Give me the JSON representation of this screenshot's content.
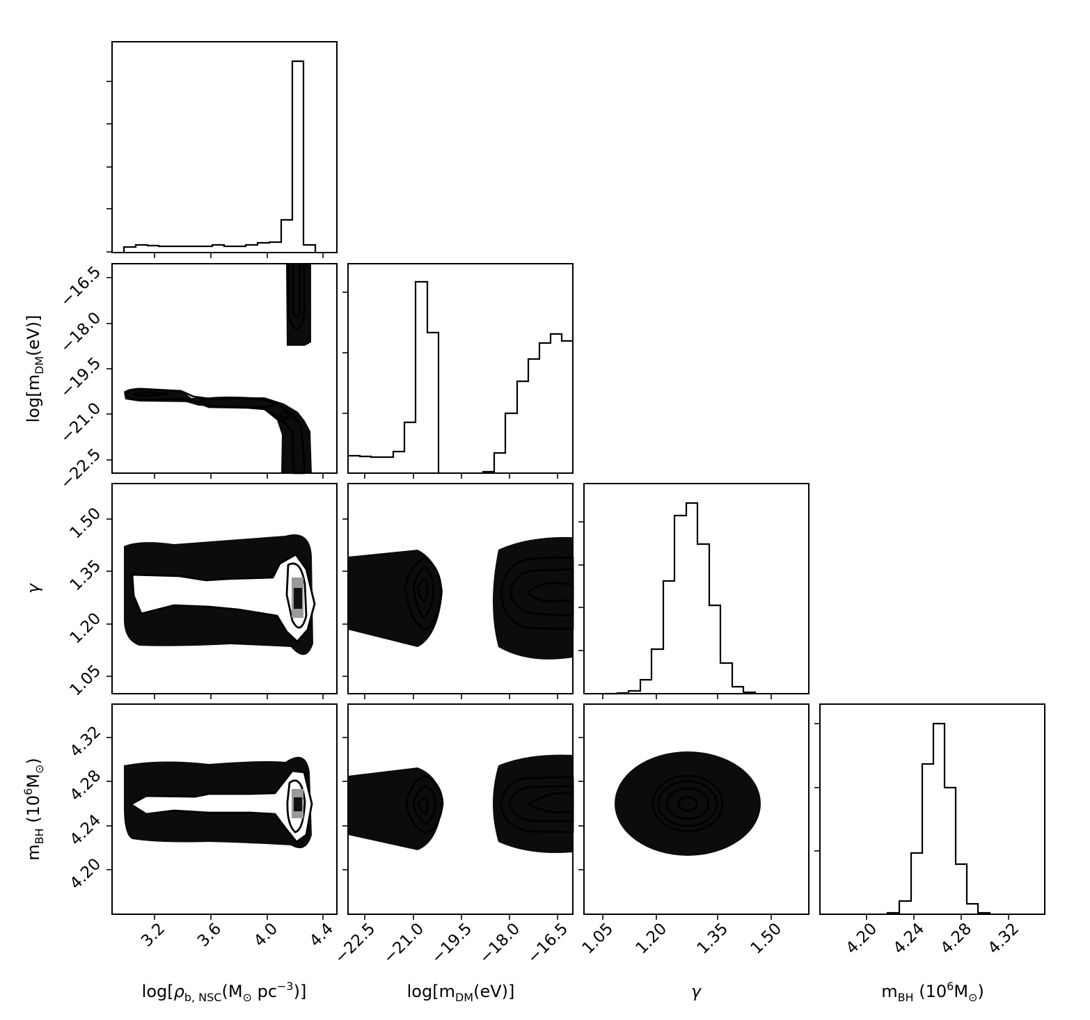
{
  "chart_data": [
    {
      "type": "histogram",
      "panel": "rho-hist",
      "variable": "log[ρ_b,NSC(M_⊙ pc^-3)]",
      "bin_edges": [
        3.0,
        3.1,
        3.2,
        3.3,
        3.4,
        3.5,
        3.6,
        3.7,
        3.8,
        3.9,
        4.0,
        4.1,
        4.2,
        4.3,
        4.4,
        4.5
      ],
      "counts": [
        0.025,
        0.038,
        0.032,
        0.03,
        0.03,
        0.03,
        0.035,
        0.03,
        0.035,
        0.045,
        0.05,
        0.17,
        1.0,
        0.04,
        0.0
      ],
      "xlim": [
        2.85,
        4.5
      ],
      "x_ticks": [
        "3.2",
        "3.6",
        "4.0",
        "4.4"
      ]
    },
    {
      "type": "histogram",
      "panel": "mdm-hist",
      "variable": "log[m_DM(eV)]",
      "bin_edges": [
        -23.0,
        -22.6,
        -22.2,
        -21.8,
        -21.4,
        -21.0,
        -20.6,
        -20.2,
        -19.8,
        -19.4,
        -19.0,
        -18.6,
        -18.2,
        -17.8,
        -17.4,
        -17.0,
        -16.6,
        -16.2
      ],
      "counts": [
        0.09,
        0.085,
        0.08,
        0.1,
        0.24,
        0.88,
        0.68,
        0.0,
        0.0,
        0.0,
        0.08,
        0.29,
        0.46,
        0.55,
        0.61,
        0.65,
        0.62
      ],
      "xlim": [
        -23.0,
        -16.0
      ],
      "x_ticks": [
        "−22.5",
        "−21.0",
        "−19.5",
        "−18.0",
        "−16.5"
      ]
    },
    {
      "type": "histogram",
      "panel": "gamma-hist",
      "variable": "γ",
      "bin_edges": [
        1.02,
        1.06,
        1.1,
        1.14,
        1.18,
        1.22,
        1.26,
        1.3,
        1.34,
        1.38,
        1.42,
        1.46,
        1.5
      ],
      "counts": [
        0.0,
        0.004,
        0.02,
        0.06,
        0.2,
        0.55,
        0.92,
        0.98,
        0.75,
        0.45,
        0.15,
        0.04
      ],
      "xlim": [
        0.99,
        1.62
      ],
      "x_ticks": [
        "1.05",
        "1.20",
        "1.35",
        "1.50"
      ]
    },
    {
      "type": "histogram",
      "panel": "mbh-hist",
      "variable": "m_BH (10^6 M_⊙)",
      "bin_edges": [
        4.21,
        4.22,
        4.23,
        4.24,
        4.25,
        4.26,
        4.27,
        4.28,
        4.29,
        4.3,
        4.31
      ],
      "counts": [
        0.005,
        0.07,
        0.32,
        0.71,
        0.9,
        0.62,
        0.24,
        0.05,
        0.005,
        0.0
      ],
      "xlim": [
        4.16,
        4.35
      ],
      "x_ticks": [
        "4.20",
        "4.24",
        "4.28",
        "4.32"
      ]
    },
    {
      "type": "scatter",
      "panel": "rho-vs-mdm",
      "x": "log[ρ_b,NSC(M_⊙ pc^-3)]",
      "y": "log[m_DM(eV)]",
      "xlim": [
        2.85,
        4.5
      ],
      "ylim": [
        -23.0,
        -16.0
      ],
      "y_ticks": [
        "−16.5",
        "−18.0",
        "−19.5",
        "−21.0",
        "−22.5"
      ]
    },
    {
      "type": "scatter",
      "panel": "rho-vs-gamma",
      "x": "log[ρ_b,NSC(M_⊙ pc^-3)]",
      "y": "γ",
      "xlim": [
        2.85,
        4.5
      ],
      "ylim": [
        0.99,
        1.62
      ],
      "y_ticks": [
        "1.50",
        "1.35",
        "1.20",
        "1.05"
      ]
    },
    {
      "type": "scatter",
      "panel": "mdm-vs-gamma",
      "x": "log[m_DM(eV)]",
      "y": "γ",
      "xlim": [
        -23.0,
        -16.0
      ],
      "ylim": [
        0.99,
        1.62
      ]
    },
    {
      "type": "scatter",
      "panel": "rho-vs-mbh",
      "x": "log[ρ_b,NSC(M_⊙ pc^-3)]",
      "y": "m_BH (10^6 M_⊙)",
      "xlim": [
        2.85,
        4.5
      ],
      "ylim": [
        4.16,
        4.35
      ],
      "y_ticks": [
        "4.32",
        "4.28",
        "4.24",
        "4.20"
      ]
    },
    {
      "type": "scatter",
      "panel": "mdm-vs-mbh",
      "x": "log[m_DM(eV)]",
      "y": "m_BH (10^6 M_⊙)",
      "xlim": [
        -23.0,
        -16.0
      ],
      "ylim": [
        4.16,
        4.35
      ]
    },
    {
      "type": "scatter",
      "panel": "gamma-vs-mbh",
      "x": "γ",
      "y": "m_BH (10^6 M_⊙)",
      "xlim": [
        0.99,
        1.62
      ],
      "ylim": [
        4.16,
        4.35
      ]
    }
  ],
  "labels": {
    "rho": {
      "pre": "log[",
      "rho": "ρ",
      "sub": "b, NSC",
      "mid": "(M",
      "sun": "⊙",
      "unit": " pc",
      "exp": "−3",
      "post": ")]"
    },
    "mdm": {
      "pre": "log[m",
      "sub": "DM",
      "post": "(eV)]"
    },
    "gamma": "γ",
    "mbh": {
      "pre": "m",
      "sub": "BH",
      "mid": " (10",
      "exp": "6",
      "unit": "M",
      "sun": "⊙",
      "post": ")"
    }
  }
}
